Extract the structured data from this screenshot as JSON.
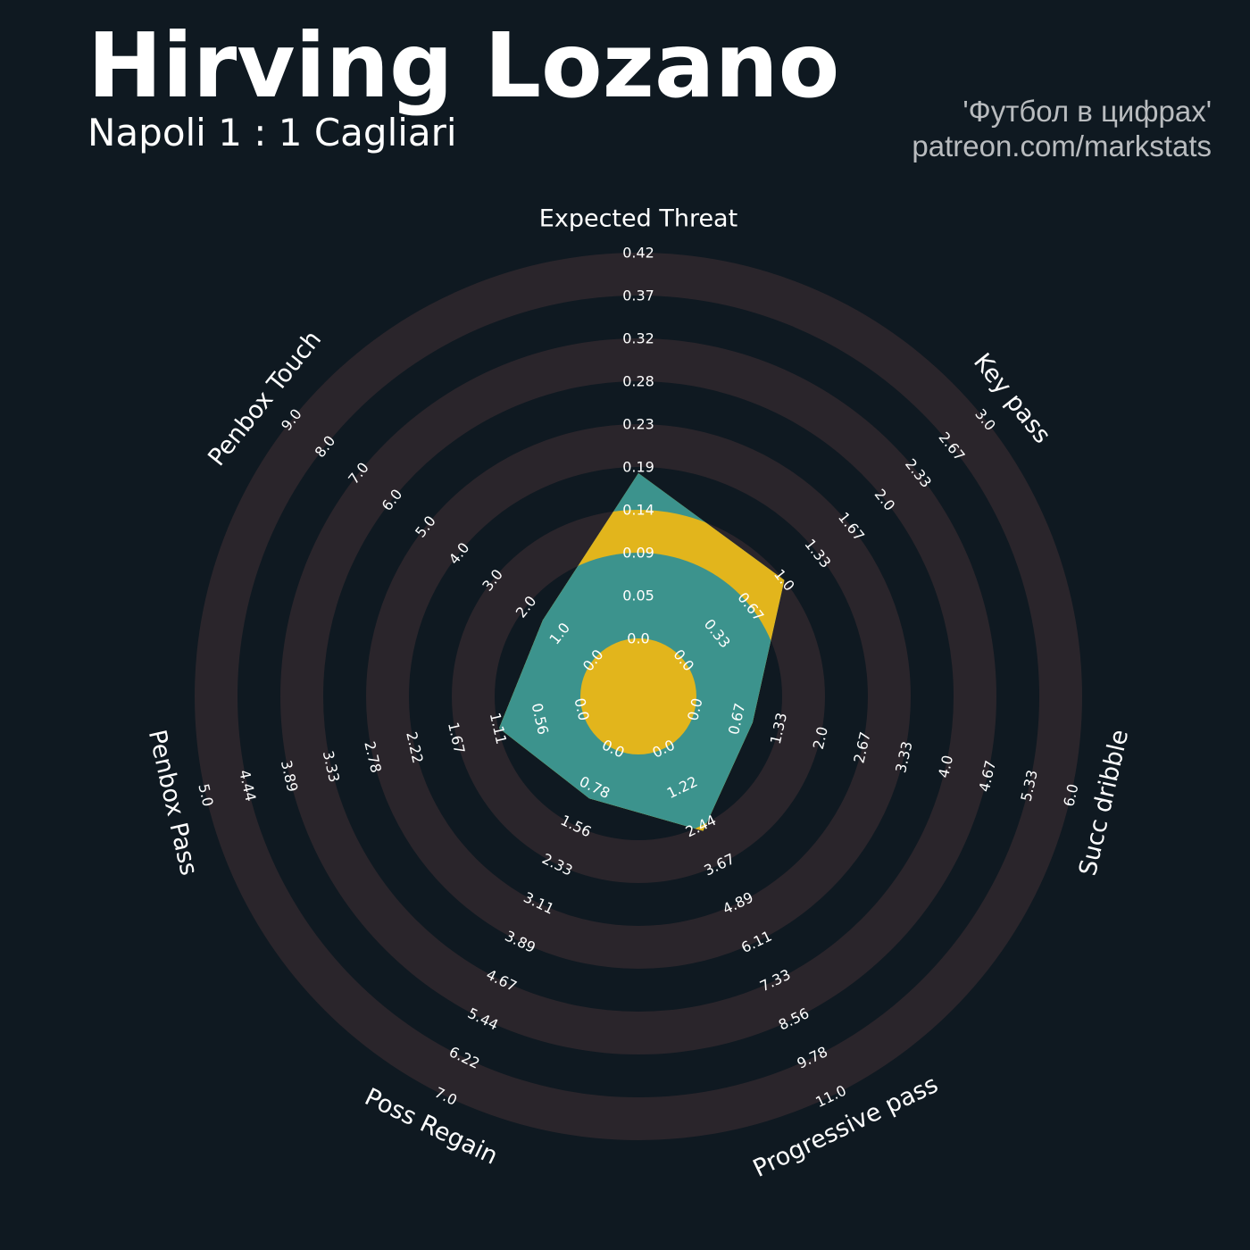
{
  "title": "Hirving Lozano",
  "subtitle": "Napoli 1 : 1 Cagliari",
  "credits": {
    "line1": "'Футбол в цифрах'",
    "line2": "patreon.com/markstats"
  },
  "colors": {
    "background": "#0f1921",
    "ring": "#2a252b",
    "polygon": "#e2b51c",
    "polygon_alt": "#3c938d",
    "text": "#ffffff",
    "credit": "#b9bcbf"
  },
  "chart_data": {
    "type": "radar",
    "title": "Hirving Lozano",
    "subtitle": "Napoli 1 : 1 Cagliari",
    "grid": true,
    "axes": [
      {
        "label": "Expected Threat",
        "min": 0.0,
        "max": 0.42,
        "value": 0.18,
        "ticks": [
          "0.0",
          "0.05",
          "0.09",
          "0.14",
          "0.19",
          "0.23",
          "0.28",
          "0.32",
          "0.37",
          "0.42"
        ]
      },
      {
        "label": "Key pass",
        "min": 0.0,
        "max": 3.0,
        "value": 1.0,
        "ticks": [
          "0.0",
          "0.33",
          "0.67",
          "1.0",
          "1.33",
          "1.67",
          "2.0",
          "2.33",
          "2.67",
          "3.0"
        ]
      },
      {
        "label": "Succ dribble",
        "min": 0.0,
        "max": 6.0,
        "value": 0.92,
        "ticks": [
          "0.0",
          "0.67",
          "1.33",
          "2.0",
          "2.67",
          "3.33",
          "4.0",
          "4.67",
          "5.33",
          "6.0"
        ]
      },
      {
        "label": "Progressive pass",
        "min": 0.0,
        "max": 11.0,
        "value": 2.6,
        "ticks": [
          "0.0",
          "1.22",
          "2.44",
          "3.67",
          "4.89",
          "6.11",
          "7.33",
          "8.56",
          "9.78",
          "11.0"
        ]
      },
      {
        "label": "Poss Regain",
        "min": 0.0,
        "max": 7.0,
        "value": 1.0,
        "ticks": [
          "0.0",
          "0.78",
          "1.56",
          "2.33",
          "3.11",
          "3.89",
          "4.67",
          "5.44",
          "6.22",
          "7.0"
        ]
      },
      {
        "label": "Penbox Pass",
        "min": 0.0,
        "max": 5.0,
        "value": 1.1,
        "ticks": [
          "0.0",
          "0.56",
          "1.11",
          "1.67",
          "2.22",
          "2.78",
          "3.33",
          "3.89",
          "4.44",
          "5.0"
        ]
      },
      {
        "label": "Penbox Touch",
        "min": 0.0,
        "max": 9.0,
        "value": 1.5,
        "ticks": [
          "0.0",
          "1.0",
          "2.0",
          "3.0",
          "4.0",
          "5.0",
          "6.0",
          "7.0",
          "8.0",
          "9.0"
        ]
      }
    ]
  }
}
